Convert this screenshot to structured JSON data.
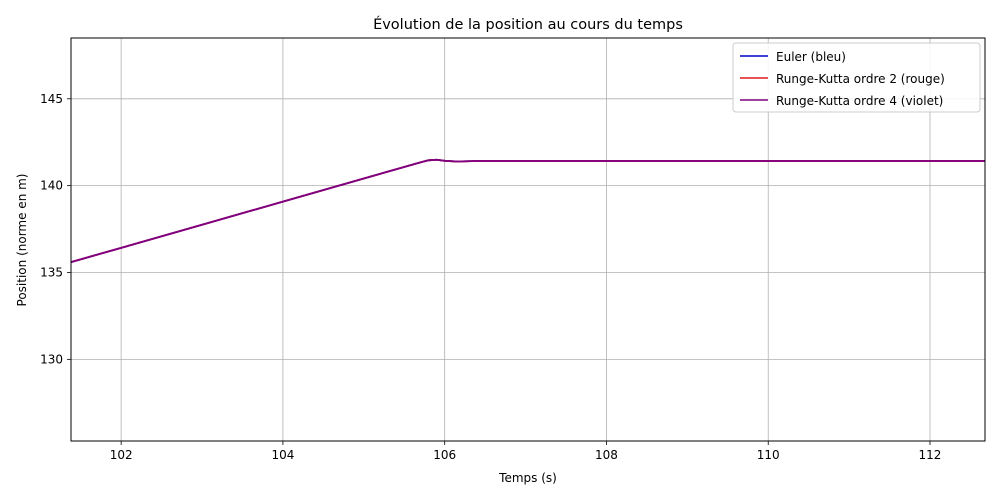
{
  "chart_data": {
    "type": "line",
    "title": "Évolution de la position au cours du temps",
    "xlabel": "Temps (s)",
    "ylabel": "Position (norme en m)",
    "xlim": [
      101.38,
      112.68
    ],
    "ylim": [
      125.3,
      148.5
    ],
    "xticks": [
      102,
      104,
      106,
      108,
      110,
      112
    ],
    "yticks": [
      130,
      135,
      140,
      145
    ],
    "grid": true,
    "legend_position": "top-right",
    "series": [
      {
        "name": "Euler (bleu)",
        "color": "#0000cc",
        "x": [
          101.38,
          102,
          103,
          104,
          105,
          105.7,
          105.8,
          105.9,
          106.0,
          106.15,
          106.4,
          107,
          108,
          109,
          110,
          111,
          112,
          112.68
        ],
        "y": [
          135.6,
          136.42,
          137.75,
          139.08,
          140.41,
          141.34,
          141.46,
          141.49,
          141.43,
          141.39,
          141.42,
          141.42,
          141.42,
          141.42,
          141.42,
          141.42,
          141.42,
          141.42
        ]
      },
      {
        "name": "Runge-Kutta ordre 2 (rouge)",
        "color": "#e41a1c",
        "x": [
          101.38,
          102,
          103,
          104,
          105,
          105.7,
          105.8,
          105.9,
          106.0,
          106.15,
          106.4,
          107,
          108,
          109,
          110,
          111,
          112,
          112.68
        ],
        "y": [
          135.6,
          136.42,
          137.75,
          139.08,
          140.41,
          141.34,
          141.46,
          141.49,
          141.43,
          141.39,
          141.42,
          141.42,
          141.42,
          141.42,
          141.42,
          141.42,
          141.42,
          141.42
        ]
      },
      {
        "name": "Runge-Kutta ordre 4 (violet)",
        "color": "#800080",
        "x": [
          101.38,
          102,
          103,
          104,
          105,
          105.7,
          105.8,
          105.9,
          106.0,
          106.15,
          106.4,
          107,
          108,
          109,
          110,
          111,
          112,
          112.68
        ],
        "y": [
          135.6,
          136.42,
          137.75,
          139.08,
          140.41,
          141.34,
          141.46,
          141.49,
          141.43,
          141.39,
          141.42,
          141.42,
          141.42,
          141.42,
          141.42,
          141.42,
          141.42,
          141.42
        ]
      }
    ]
  }
}
